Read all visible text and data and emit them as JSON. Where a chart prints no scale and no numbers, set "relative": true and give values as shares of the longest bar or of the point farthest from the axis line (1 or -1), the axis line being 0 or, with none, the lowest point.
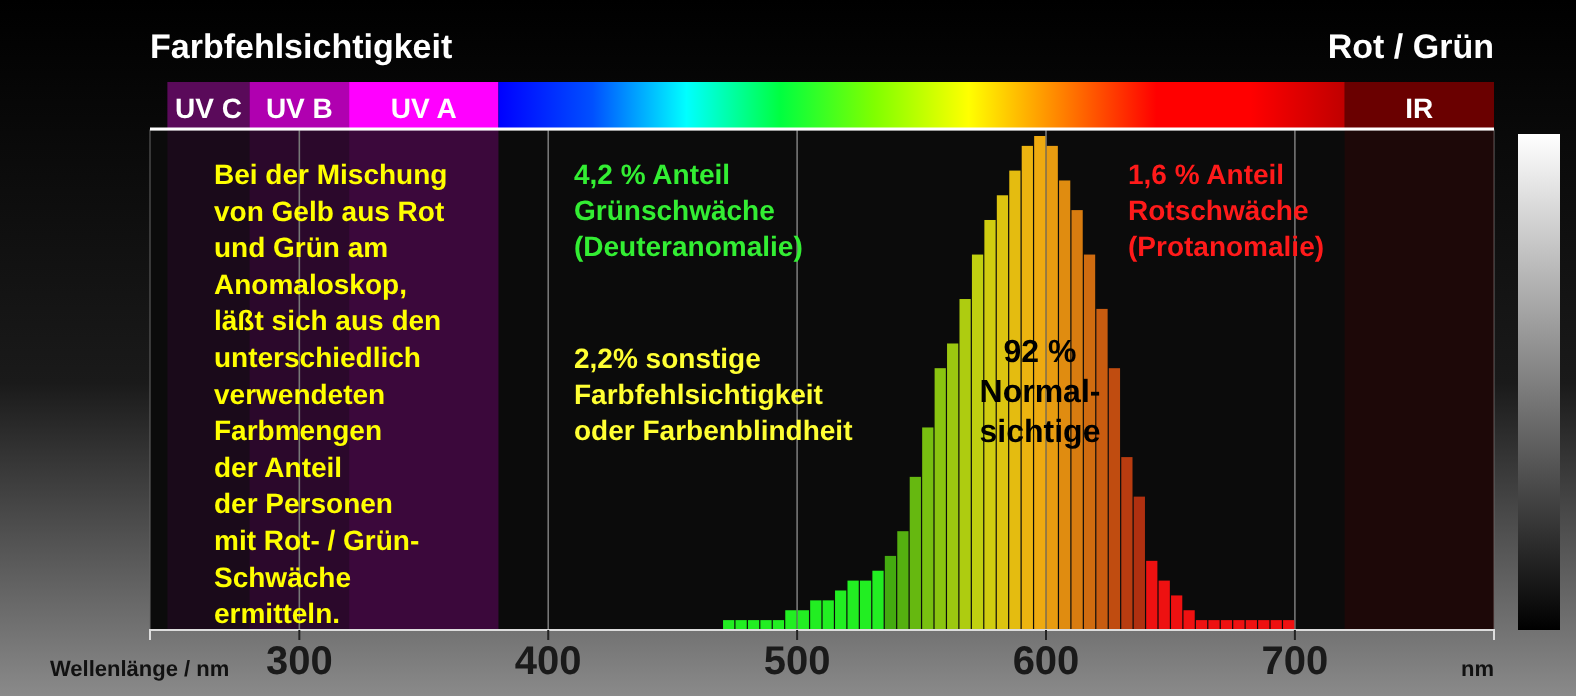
{
  "chart_data": {
    "type": "bar",
    "title": "Farbfehlsichtigkeit",
    "subtitle": "Rot / Grün",
    "xlabel": "Wellenlänge / nm",
    "annotations": [
      "Bei der Mischung\nvon Gelb aus Rot\nund Grün am\nAnomaloskop,\nläßt sich aus den\nunterschiedlich\nverwendeten\nFarbmengen\nder Anteil\nder Personen\nmit Rot- / Grün-\nSchwäche\nermitteln.",
      "4,2 % Anteil\nGrünschwäche\n(Deuteranomalie)",
      "1,6 % Anteil\nRotschwäche\n(Protanomalie)",
      "2,2% sonstige\nFarbfehlsichtigkeit\noder Farbenblindheit",
      "92 %\nNormal-\nsichtige",
      "nm"
    ],
    "relative": true,
    "x": [
      472.5,
      477.5,
      482.5,
      487.5,
      492.5,
      497.5,
      502.5,
      507.5,
      512.5,
      517.5,
      522.5,
      527.5,
      532.5,
      537.5,
      542.5,
      547.5,
      552.5,
      557.5,
      562.5,
      567.5,
      572.5,
      577.5,
      582.5,
      587.5,
      592.5,
      597.5,
      602.5,
      607.5,
      612.5,
      617.5,
      622.5,
      627.5,
      632.5,
      637.5,
      642.5,
      647.5,
      652.5,
      657.5,
      662.5,
      667.5,
      672.5,
      677.5,
      682.5,
      687.5,
      692.5,
      697.5
    ],
    "values": [
      0.02,
      0.02,
      0.02,
      0.02,
      0.02,
      0.04,
      0.04,
      0.06,
      0.06,
      0.08,
      0.1,
      0.1,
      0.12,
      0.15,
      0.2,
      0.31,
      0.41,
      0.53,
      0.58,
      0.67,
      0.76,
      0.83,
      0.88,
      0.93,
      0.98,
      1.0,
      0.98,
      0.91,
      0.85,
      0.76,
      0.65,
      0.53,
      0.35,
      0.27,
      0.14,
      0.1,
      0.07,
      0.04,
      0.02,
      0.02,
      0.02,
      0.02,
      0.02,
      0.02,
      0.02,
      0.02
    ],
    "colors": [
      "#22ee22",
      "#22ee22",
      "#22ee22",
      "#22ee22",
      "#22ee22",
      "#22ee22",
      "#22ee22",
      "#22ee22",
      "#22ee22",
      "#22ee22",
      "#22ee22",
      "#22ee22",
      "#22ee22",
      "#44aa10",
      "#55b010",
      "#66b810",
      "#78c010",
      "#8ac410",
      "#9cc810",
      "#aecc10",
      "#c0d010",
      "#d0cc10",
      "#dcc410",
      "#e4bc10",
      "#ecb410",
      "#eeaa10",
      "#e89c10",
      "#e08c10",
      "#d87c10",
      "#d06c10",
      "#c85c10",
      "#c04c10",
      "#b83c10",
      "#b03010",
      "#ee1111",
      "#ee1111",
      "#ee1111",
      "#ee1111",
      "#ee1111",
      "#ee1111",
      "#ee1111",
      "#ee1111",
      "#ee1111",
      "#ee1111",
      "#ee1111",
      "#ee1111"
    ],
    "xlim": [
      240,
      780
    ],
    "xticks": [
      300,
      400,
      500,
      600,
      700
    ],
    "grid": "x",
    "bands": [
      {
        "axis": "x",
        "from": 247,
        "to": 280,
        "label": "UV C",
        "color": "#5a0a5a"
      },
      {
        "axis": "x",
        "from": 280,
        "to": 320,
        "label": "UV B",
        "color": "#b000b0"
      },
      {
        "axis": "x",
        "from": 320,
        "to": 380,
        "label": "UV A",
        "color": "#ff00ff"
      },
      {
        "axis": "x",
        "from": 720,
        "to": 780,
        "label": "IR",
        "color": "#6a0000"
      }
    ]
  }
}
